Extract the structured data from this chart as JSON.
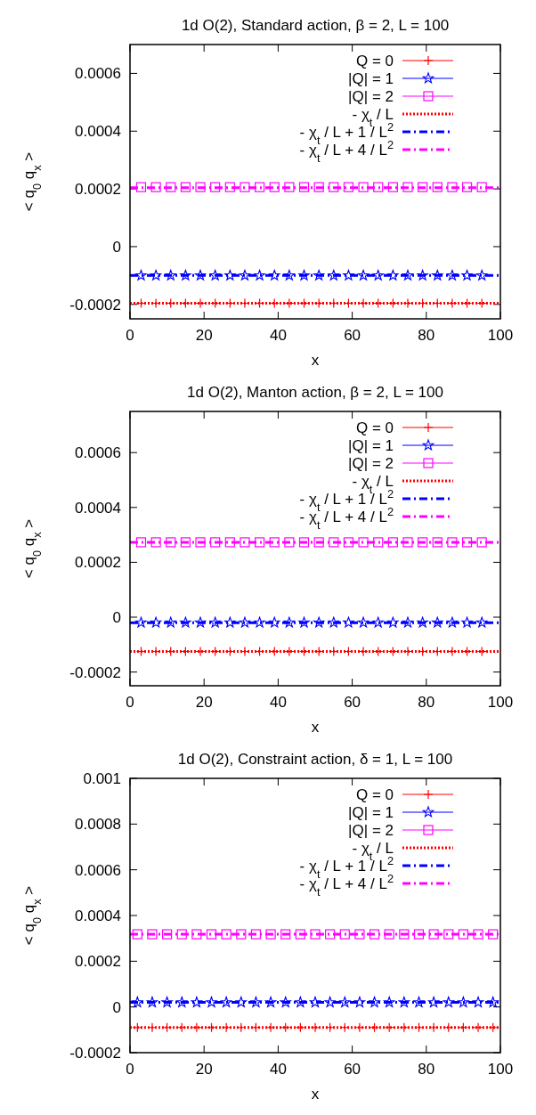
{
  "chart_data": [
    {
      "type": "scatter",
      "title": "1d O(2),  Standard action,  β = 2,  L = 100",
      "xlabel": "x",
      "ylabel": "< q$_{0}$  q$_{x}$ >",
      "xlim": [
        0,
        100
      ],
      "xticks": [
        0,
        20,
        40,
        60,
        80,
        100
      ],
      "ylim": [
        -0.00025,
        0.0007
      ],
      "yticks": [
        -0.0002,
        0,
        0.0002,
        0.0004,
        0.0006
      ],
      "legend": "top right",
      "grid": false,
      "series": [
        {
          "name": "Q = 0",
          "type": "scatter",
          "marker": "cross",
          "color": "#ff0000",
          "x": [
            3,
            7,
            11,
            15,
            19,
            23,
            27,
            31,
            35,
            39,
            43,
            47,
            51,
            55,
            59,
            63,
            67,
            71,
            75,
            79,
            83,
            87,
            91,
            95
          ],
          "values": [
            -0.000196,
            -0.000196,
            -0.000196,
            -0.000196,
            -0.000196,
            -0.000196,
            -0.000196,
            -0.000196,
            -0.000196,
            -0.000196,
            -0.000196,
            -0.000196,
            -0.000196,
            -0.000196,
            -0.000196,
            -0.000196,
            -0.000196,
            -0.000196,
            -0.000196,
            -0.000196,
            -0.000196,
            -0.000196,
            -0.000196,
            -0.000196
          ]
        },
        {
          "name": "|Q| = 1",
          "type": "scatter",
          "marker": "star",
          "color": "#0000ff",
          "x": [
            3,
            7,
            11,
            15,
            19,
            23,
            27,
            31,
            35,
            39,
            43,
            47,
            51,
            55,
            59,
            63,
            67,
            71,
            75,
            79,
            83,
            87,
            91,
            95
          ],
          "values": [
            -0.0001,
            -0.0001,
            -0.0001,
            -0.0001,
            -0.0001,
            -0.0001,
            -0.0001,
            -0.0001,
            -0.0001,
            -0.0001,
            -0.0001,
            -0.0001,
            -0.0001,
            -0.0001,
            -0.0001,
            -0.0001,
            -0.0001,
            -0.0001,
            -0.0001,
            -0.0001,
            -0.0001,
            -0.0001,
            -0.0001,
            -0.0001
          ]
        },
        {
          "name": "|Q| = 2",
          "type": "scatter",
          "marker": "square",
          "color": "#ff00ff",
          "x": [
            3,
            7,
            11,
            15,
            19,
            23,
            27,
            31,
            35,
            39,
            43,
            47,
            51,
            55,
            59,
            63,
            67,
            71,
            75,
            79,
            83,
            87,
            91,
            95
          ],
          "values": [
            0.000206,
            0.000206,
            0.000206,
            0.000206,
            0.000206,
            0.000206,
            0.000206,
            0.000206,
            0.000206,
            0.000206,
            0.000206,
            0.000206,
            0.000206,
            0.000206,
            0.000206,
            0.000206,
            0.000206,
            0.000206,
            0.000206,
            0.000206,
            0.000206,
            0.000206,
            0.000206,
            0.000206
          ]
        },
        {
          "name": "- χ$_{t}$ / L",
          "type": "line",
          "line_style": "dotted",
          "color": "#ff0000",
          "x": [
            0,
            100
          ],
          "values": [
            -0.000196,
            -0.000196
          ]
        },
        {
          "name": "- χ$_{t}$ / L + 1 / L$^{2}$",
          "type": "line",
          "line_style": "dashed",
          "color": "#0000ff",
          "x": [
            0,
            100
          ],
          "values": [
            -0.0001,
            -0.0001
          ]
        },
        {
          "name": "- χ$_{t}$ / L + 4 / L$^{2}$",
          "type": "line",
          "line_style": "dashed",
          "color": "#ff00ff",
          "x": [
            0,
            100
          ],
          "values": [
            0.000204,
            0.000204
          ]
        }
      ]
    },
    {
      "type": "scatter",
      "title": "1d O(2),  Manton action,  β = 2,  L = 100",
      "xlabel": "x",
      "ylabel": "< q$_{0}$  q$_{x}$ >",
      "xlim": [
        0,
        100
      ],
      "xticks": [
        0,
        20,
        40,
        60,
        80,
        100
      ],
      "ylim": [
        -0.00025,
        0.00075
      ],
      "yticks": [
        -0.0002,
        0,
        0.0002,
        0.0004,
        0.0006
      ],
      "legend": "top right",
      "grid": false,
      "series": [
        {
          "name": "Q = 0",
          "type": "scatter",
          "marker": "cross",
          "color": "#ff0000",
          "x": [
            3,
            7,
            11,
            15,
            19,
            23,
            27,
            31,
            35,
            39,
            43,
            47,
            51,
            55,
            59,
            63,
            67,
            71,
            75,
            79,
            83,
            87,
            91,
            95
          ],
          "values": [
            -0.000125,
            -0.000125,
            -0.000125,
            -0.000125,
            -0.000125,
            -0.000125,
            -0.000125,
            -0.000125,
            -0.000125,
            -0.000125,
            -0.000125,
            -0.000125,
            -0.000125,
            -0.000125,
            -0.000125,
            -0.000125,
            -0.000125,
            -0.000125,
            -0.000125,
            -0.000125,
            -0.000125,
            -0.000125,
            -0.000125,
            -0.000125
          ]
        },
        {
          "name": "|Q| = 1",
          "type": "scatter",
          "marker": "star",
          "color": "#0000ff",
          "x": [
            3,
            7,
            11,
            15,
            19,
            23,
            27,
            31,
            35,
            39,
            43,
            47,
            51,
            55,
            59,
            63,
            67,
            71,
            75,
            79,
            83,
            87,
            91,
            95
          ],
          "values": [
            -2e-05,
            -2e-05,
            -2e-05,
            -2e-05,
            -2e-05,
            -2e-05,
            -2e-05,
            -2e-05,
            -2e-05,
            -2e-05,
            -2e-05,
            -2e-05,
            -2e-05,
            -2e-05,
            -2e-05,
            -2e-05,
            -2e-05,
            -2e-05,
            -2e-05,
            -2e-05,
            -2e-05,
            -2e-05,
            -2e-05,
            -2e-05
          ]
        },
        {
          "name": "|Q| = 2",
          "type": "scatter",
          "marker": "square",
          "color": "#ff00ff",
          "x": [
            3,
            7,
            11,
            15,
            19,
            23,
            27,
            31,
            35,
            39,
            43,
            47,
            51,
            55,
            59,
            63,
            67,
            71,
            75,
            79,
            83,
            87,
            91,
            95
          ],
          "values": [
            0.000273,
            0.000273,
            0.000273,
            0.000273,
            0.000273,
            0.000273,
            0.000273,
            0.000273,
            0.000273,
            0.000273,
            0.000273,
            0.000273,
            0.000273,
            0.000273,
            0.000273,
            0.000273,
            0.000273,
            0.000273,
            0.000273,
            0.000273,
            0.000273,
            0.000273,
            0.000273,
            0.000273
          ]
        },
        {
          "name": "- χ$_{t}$ / L",
          "type": "line",
          "line_style": "dotted",
          "color": "#ff0000",
          "x": [
            0,
            100
          ],
          "values": [
            -0.000125,
            -0.000125
          ]
        },
        {
          "name": "- χ$_{t}$ / L + 1 / L$^{2}$",
          "type": "line",
          "line_style": "dashed",
          "color": "#0000ff",
          "x": [
            0,
            100
          ],
          "values": [
            -2e-05,
            -2e-05
          ]
        },
        {
          "name": "- χ$_{t}$ / L + 4 / L$^{2}$",
          "type": "line",
          "line_style": "dashed",
          "color": "#ff00ff",
          "x": [
            0,
            100
          ],
          "values": [
            0.000273,
            0.000273
          ]
        }
      ]
    },
    {
      "type": "scatter",
      "title": "1d O(2),  Constraint action,  δ = 1,  L = 100",
      "xlabel": "x",
      "ylabel": "< q$_{0}$  q$_{x}$ >",
      "xlim": [
        0,
        100
      ],
      "xticks": [
        0,
        20,
        40,
        60,
        80,
        100
      ],
      "ylim": [
        -0.0002,
        0.001
      ],
      "yticks": [
        -0.0002,
        0,
        0.0002,
        0.0004,
        0.0006,
        0.0008,
        0.001
      ],
      "legend": "top right",
      "grid": false,
      "series": [
        {
          "name": "Q = 0",
          "type": "scatter",
          "marker": "cross",
          "color": "#ff0000",
          "x": [
            2,
            6,
            10,
            14,
            18,
            22,
            26,
            30,
            34,
            38,
            42,
            46,
            50,
            54,
            58,
            62,
            66,
            70,
            74,
            78,
            82,
            86,
            90,
            94,
            98
          ],
          "values": [
            -9e-05,
            -9e-05,
            -9e-05,
            -9e-05,
            -9e-05,
            -9e-05,
            -9e-05,
            -9e-05,
            -9e-05,
            -9e-05,
            -9e-05,
            -9e-05,
            -9e-05,
            -9e-05,
            -9e-05,
            -9e-05,
            -9e-05,
            -9e-05,
            -9e-05,
            -9e-05,
            -9e-05,
            -9e-05,
            -9e-05,
            -9e-05,
            -9e-05
          ]
        },
        {
          "name": "|Q| = 1",
          "type": "scatter",
          "marker": "star",
          "color": "#0000ff",
          "x": [
            2,
            6,
            10,
            14,
            18,
            22,
            26,
            30,
            34,
            38,
            42,
            46,
            50,
            54,
            58,
            62,
            66,
            70,
            74,
            78,
            82,
            86,
            90,
            94,
            98
          ],
          "values": [
            2e-05,
            2e-05,
            2e-05,
            2e-05,
            2e-05,
            2e-05,
            2e-05,
            2e-05,
            2e-05,
            2e-05,
            2e-05,
            2e-05,
            2e-05,
            2e-05,
            2e-05,
            2e-05,
            2e-05,
            2e-05,
            2e-05,
            2e-05,
            2e-05,
            2e-05,
            2e-05,
            2e-05,
            2e-05
          ]
        },
        {
          "name": "|Q| = 2",
          "type": "scatter",
          "marker": "square",
          "color": "#ff00ff",
          "x": [
            2,
            6,
            10,
            14,
            18,
            22,
            26,
            30,
            34,
            38,
            42,
            46,
            50,
            54,
            58,
            62,
            66,
            70,
            74,
            78,
            82,
            86,
            90,
            94,
            98
          ],
          "values": [
            0.000318,
            0.000318,
            0.000318,
            0.000318,
            0.000318,
            0.000318,
            0.000318,
            0.000318,
            0.000318,
            0.000318,
            0.000318,
            0.000318,
            0.000318,
            0.000318,
            0.000318,
            0.000318,
            0.000318,
            0.000318,
            0.000318,
            0.000318,
            0.000318,
            0.000318,
            0.000318,
            0.000318,
            0.000318
          ]
        },
        {
          "name": "- χ$_{t}$ / L",
          "type": "line",
          "line_style": "dotted",
          "color": "#ff0000",
          "x": [
            0,
            100
          ],
          "values": [
            -9e-05,
            -9e-05
          ]
        },
        {
          "name": "- χ$_{t}$ / L + 1 / L$^{2}$",
          "type": "line",
          "line_style": "dashed",
          "color": "#0000ff",
          "x": [
            0,
            100
          ],
          "values": [
            2e-05,
            2e-05
          ]
        },
        {
          "name": "- χ$_{t}$ / L + 4 / L$^{2}$",
          "type": "line",
          "line_style": "dashed",
          "color": "#ff00ff",
          "x": [
            0,
            100
          ],
          "values": [
            0.000318,
            0.000318
          ]
        }
      ]
    }
  ]
}
